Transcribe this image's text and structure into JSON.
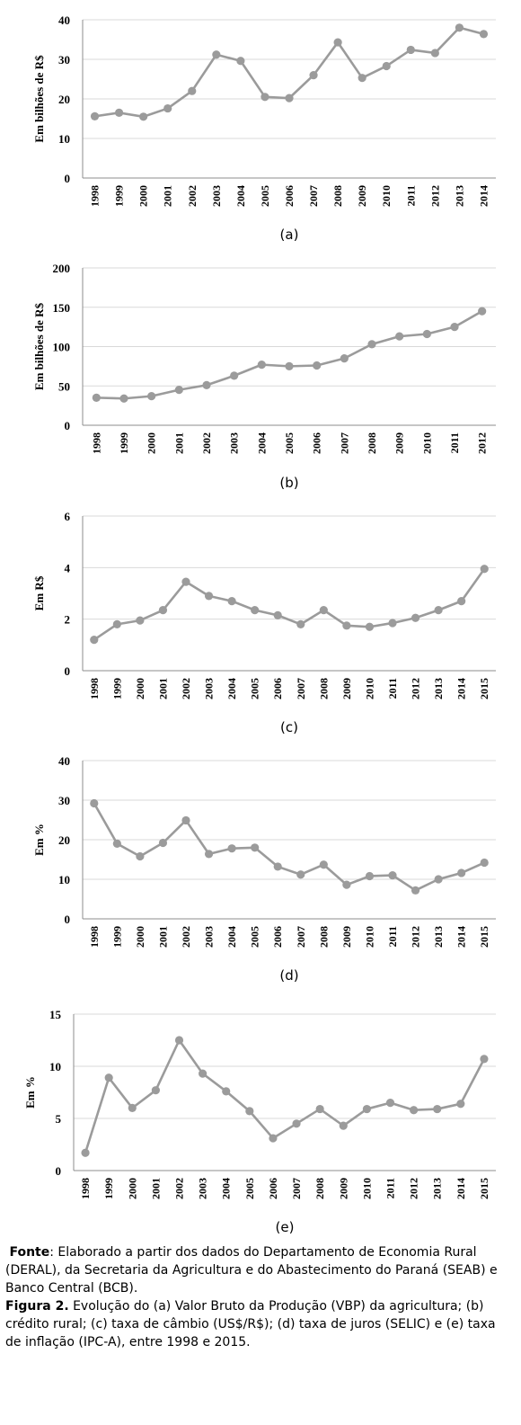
{
  "chart_data": [
    {
      "type": "line",
      "panel_label": "(a)",
      "ylabel": "Em bilhões de R$",
      "ylim": [
        0,
        40
      ],
      "yticks": [
        0,
        10,
        20,
        30,
        40
      ],
      "x": [
        "1998",
        "1999",
        "2000",
        "2001",
        "2002",
        "2003",
        "2004",
        "2005",
        "2006",
        "2007",
        "2008",
        "2009",
        "2010",
        "2011",
        "2012",
        "2013",
        "2014"
      ],
      "values": [
        15.6,
        16.5,
        15.5,
        17.6,
        22,
        31.2,
        29.6,
        20.5,
        20.2,
        26,
        34.3,
        25.3,
        28.3,
        32.4,
        31.6,
        38,
        36.4
      ],
      "grid": true,
      "color": "#9b9b9b"
    },
    {
      "type": "line",
      "panel_label": "(b)",
      "ylabel": "Em bilhões de R$",
      "ylim": [
        0,
        200
      ],
      "yticks": [
        0,
        50,
        100,
        150,
        200
      ],
      "x": [
        "1998",
        "1999",
        "2000",
        "2001",
        "2002",
        "2003",
        "2004",
        "2005",
        "2006",
        "2007",
        "2008",
        "2009",
        "2010",
        "2011",
        "2012"
      ],
      "values": [
        35,
        34,
        37,
        45,
        51,
        63,
        77,
        75,
        76,
        85,
        103,
        113,
        116,
        125,
        145
      ],
      "grid": true,
      "color": "#9b9b9b"
    },
    {
      "type": "line",
      "panel_label": "(c)",
      "ylabel": "Em R$",
      "ylim": [
        0,
        6
      ],
      "yticks": [
        0,
        2,
        4,
        6
      ],
      "x": [
        "1998",
        "1999",
        "2000",
        "2001",
        "2002",
        "2003",
        "2004",
        "2005",
        "2006",
        "2007",
        "2008",
        "2009",
        "2010",
        "2011",
        "2012",
        "2013",
        "2014",
        "2015"
      ],
      "values": [
        1.2,
        1.8,
        1.95,
        2.35,
        3.45,
        2.9,
        2.7,
        2.35,
        2.15,
        1.8,
        2.35,
        1.75,
        1.7,
        1.85,
        2.05,
        2.35,
        2.7,
        3.95
      ],
      "grid": true,
      "color": "#9b9b9b"
    },
    {
      "type": "line",
      "panel_label": "(d)",
      "ylabel": "Em %",
      "ylim": [
        0,
        40
      ],
      "yticks": [
        0,
        10,
        20,
        30,
        40
      ],
      "x": [
        "1998",
        "1999",
        "2000",
        "2001",
        "2002",
        "2003",
        "2004",
        "2005",
        "2006",
        "2007",
        "2008",
        "2009",
        "2010",
        "2011",
        "2012",
        "2013",
        "2014",
        "2015"
      ],
      "values": [
        29.2,
        19,
        15.8,
        19.2,
        24.9,
        16.4,
        17.8,
        18,
        13.2,
        11.2,
        13.7,
        8.6,
        10.8,
        11,
        7.2,
        10,
        11.6,
        14.2
      ],
      "grid": true,
      "color": "#9b9b9b"
    },
    {
      "type": "line",
      "panel_label": "(e)",
      "ylabel": "Em %",
      "ylim": [
        0,
        15
      ],
      "yticks": [
        0,
        5,
        10,
        15
      ],
      "x": [
        "1998",
        "1999",
        "2000",
        "2001",
        "2002",
        "2003",
        "2004",
        "2005",
        "2006",
        "2007",
        "2008",
        "2009",
        "2010",
        "2011",
        "2012",
        "2013",
        "2014",
        "2015"
      ],
      "values": [
        1.7,
        8.9,
        6,
        7.7,
        12.5,
        9.3,
        7.6,
        5.7,
        3.1,
        4.5,
        5.9,
        4.3,
        5.9,
        6.5,
        5.8,
        5.9,
        6.4,
        10.7
      ],
      "grid": true,
      "color": "#9b9b9b"
    }
  ],
  "caption": {
    "source_label": "Fonte",
    "source_text": ": Elaborado a partir dos dados do Departamento de Economia Rural (DERAL), da Secretaria da Agricultura e do Abastecimento do Paraná (SEAB) e Banco Central (BCB).",
    "figure_label": "Figura 2.",
    "figure_text": " Evolução do (a) Valor Bruto da Produção (VBP) da agricultura; (b) crédito rural; (c) taxa de câmbio (US$/R$); (d) taxa de juros (SELIC) e (e) taxa de inflação (IPC-A), entre 1998 e 2015."
  }
}
